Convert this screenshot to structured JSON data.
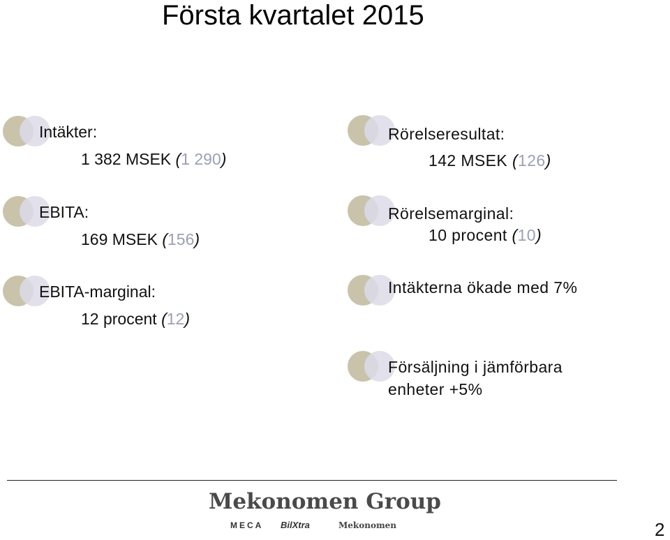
{
  "title": "Första kvartalet 2015",
  "left_items": [
    {
      "label": "Intäkter:",
      "value": "1 382 MSEK",
      "prev_open": " (",
      "prev_num": "1 290",
      "prev_close": ")"
    },
    {
      "label": "EBITA:",
      "value": "169 MSEK",
      "prev_open": " (",
      "prev_num": "156",
      "prev_close": ")"
    },
    {
      "label": "EBITA-marginal:",
      "value": "12 procent",
      "prev_open": " (",
      "prev_num": "12",
      "prev_close": ")"
    }
  ],
  "right_items": [
    {
      "label": "Rörelseresultat:",
      "value": "142 MSEK",
      "prev_open": " (",
      "prev_num": "126",
      "prev_close": ")"
    },
    {
      "label": "Rörelsemarginal:",
      "value": "10 procent",
      "prev_open": " (",
      "prev_num": "10",
      "prev_close": ")"
    },
    {
      "label": "Intäkterna ökade med 7%"
    },
    {
      "label_line1": "Försäljning i jämförbara",
      "label_line2": "enheter +5%"
    }
  ],
  "footer": {
    "logo": "Mekonomen Group",
    "brands": [
      "MECA",
      "BilXtra",
      "Mekonomen"
    ],
    "page_number": "2"
  },
  "colors": {
    "bullet_left": "#c9c3ac",
    "bullet_right": "#dcdae8",
    "prev_number": "#9aa1b4"
  }
}
